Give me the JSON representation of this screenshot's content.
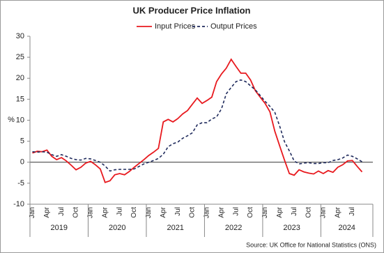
{
  "chart_data": {
    "type": "line",
    "title": "UK Producer Price Inflation",
    "y_label": "%",
    "source": "Source: UK Office for National Statistics (ONS)",
    "categories": [
      "Jan",
      null,
      null,
      "Apr",
      null,
      null,
      "Jul",
      null,
      null,
      "Oct",
      null,
      null,
      "Jan",
      null,
      null,
      "Apr",
      null,
      null,
      "Jul",
      null,
      null,
      "Oct",
      null,
      null,
      "Jan",
      null,
      null,
      "Apr",
      null,
      null,
      "Jul",
      null,
      null,
      "Oct",
      null,
      null,
      "Jan",
      null,
      null,
      "Apr",
      null,
      null,
      "Jul",
      null,
      null,
      "Oct",
      null,
      null,
      "Jan",
      null,
      null,
      "Apr",
      null,
      null,
      "Jul",
      null,
      null,
      "Oct",
      null,
      null,
      "Jan",
      null,
      null,
      "Apr",
      null,
      null,
      "Jul",
      null,
      null
    ],
    "years": [
      "2019",
      "2020",
      "2021",
      "2022",
      "2023",
      "2024"
    ],
    "series": [
      {
        "name": "Input Prices",
        "color": "#e8191e",
        "dash": false,
        "values": [
          2.2,
          2.6,
          2.5,
          2.9,
          1.4,
          0.6,
          1.1,
          0.3,
          -0.7,
          -1.8,
          -1.2,
          -0.2,
          0.2,
          -0.6,
          -1.6,
          -4.8,
          -4.4,
          -3.0,
          -2.7,
          -3.0,
          -2.2,
          -1.2,
          -0.3,
          0.6,
          1.6,
          2.4,
          3.3,
          9.6,
          10.2,
          9.6,
          10.4,
          11.5,
          12.3,
          13.8,
          15.3,
          14.0,
          14.7,
          15.5,
          19.2,
          21.0,
          22.4,
          24.5,
          22.8,
          21.2,
          21.2,
          19.6,
          17.0,
          15.5,
          14.0,
          12.0,
          7.4,
          3.9,
          0.5,
          -2.7,
          -3.1,
          -1.8,
          -2.3,
          -2.6,
          -2.8,
          -2.1,
          -2.7,
          -2.0,
          -2.4,
          -1.2,
          -0.6,
          0.3,
          0.4,
          -1.0,
          -2.3
        ]
      },
      {
        "name": "Output Prices",
        "color": "#1f2a5c",
        "dash": true,
        "values": [
          2.5,
          2.4,
          2.5,
          2.4,
          1.8,
          1.4,
          1.8,
          1.4,
          0.9,
          0.6,
          0.5,
          0.9,
          0.8,
          0.4,
          0.0,
          -0.9,
          -2.1,
          -1.8,
          -1.7,
          -1.7,
          -1.7,
          -1.6,
          -1.0,
          -0.4,
          0.0,
          0.4,
          0.9,
          1.9,
          3.7,
          4.4,
          4.8,
          5.7,
          6.3,
          7.0,
          8.9,
          9.4,
          9.4,
          10.3,
          10.8,
          12.7,
          16.3,
          17.8,
          19.2,
          19.6,
          19.2,
          18.2,
          17.2,
          15.9,
          14.5,
          13.3,
          11.9,
          8.6,
          4.9,
          2.7,
          0.3,
          -0.4,
          -0.2,
          -0.1,
          -0.3,
          -0.3,
          -0.1,
          -0.1,
          0.4,
          0.6,
          1.0,
          1.7,
          1.4,
          0.8,
          0.1
        ]
      }
    ],
    "ylim": [
      -10,
      30
    ],
    "yticks": [
      -10,
      -5,
      0,
      5,
      10,
      15,
      20,
      25,
      30
    ],
    "grid": false
  }
}
